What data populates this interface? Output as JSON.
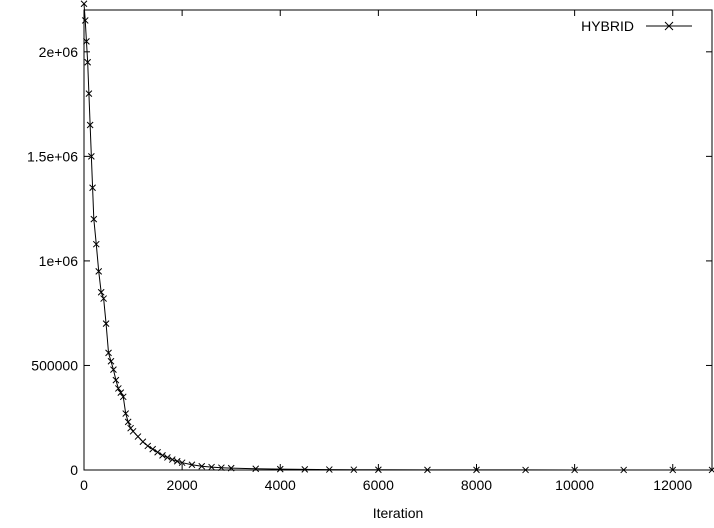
{
  "chart_data": {
    "type": "line",
    "title": "",
    "xlabel": "Iteration",
    "ylabel": "",
    "xlim": [
      0,
      12800
    ],
    "ylim": [
      0,
      2200000
    ],
    "x_ticks": [
      0,
      2000,
      4000,
      6000,
      8000,
      10000,
      12000
    ],
    "x_tick_labels": [
      "0",
      "2000",
      "4000",
      "6000",
      "8000",
      "10000",
      "12000"
    ],
    "y_ticks": [
      0,
      500000,
      1000000,
      1500000,
      2000000
    ],
    "y_tick_labels": [
      "0",
      "500000",
      "1e+06",
      "1.5e+06",
      "2e+06"
    ],
    "grid": false,
    "legend_position": "top-right",
    "marker": "x",
    "series": [
      {
        "name": "HYBRID",
        "x": [
          0,
          25,
          50,
          75,
          100,
          125,
          150,
          175,
          200,
          250,
          300,
          350,
          400,
          450,
          500,
          550,
          600,
          650,
          700,
          750,
          800,
          850,
          900,
          950,
          1000,
          1100,
          1200,
          1300,
          1400,
          1500,
          1600,
          1700,
          1800,
          1900,
          2000,
          2200,
          2400,
          2600,
          2800,
          3000,
          3500,
          4000,
          4500,
          5000,
          5500,
          6000,
          7000,
          8000,
          9000,
          10000,
          11000,
          12000,
          12800
        ],
        "values": [
          2230000,
          2150000,
          2050000,
          1950000,
          1800000,
          1650000,
          1500000,
          1350000,
          1200000,
          1080000,
          950000,
          850000,
          820000,
          700000,
          560000,
          520000,
          480000,
          430000,
          390000,
          370000,
          350000,
          270000,
          230000,
          200000,
          185000,
          160000,
          135000,
          115000,
          100000,
          85000,
          70000,
          60000,
          50000,
          42000,
          35000,
          25000,
          18000,
          14000,
          11000,
          9000,
          6000,
          4000,
          3000,
          2000,
          1500,
          1000,
          700,
          500,
          400,
          300,
          250,
          200,
          200
        ]
      }
    ]
  }
}
